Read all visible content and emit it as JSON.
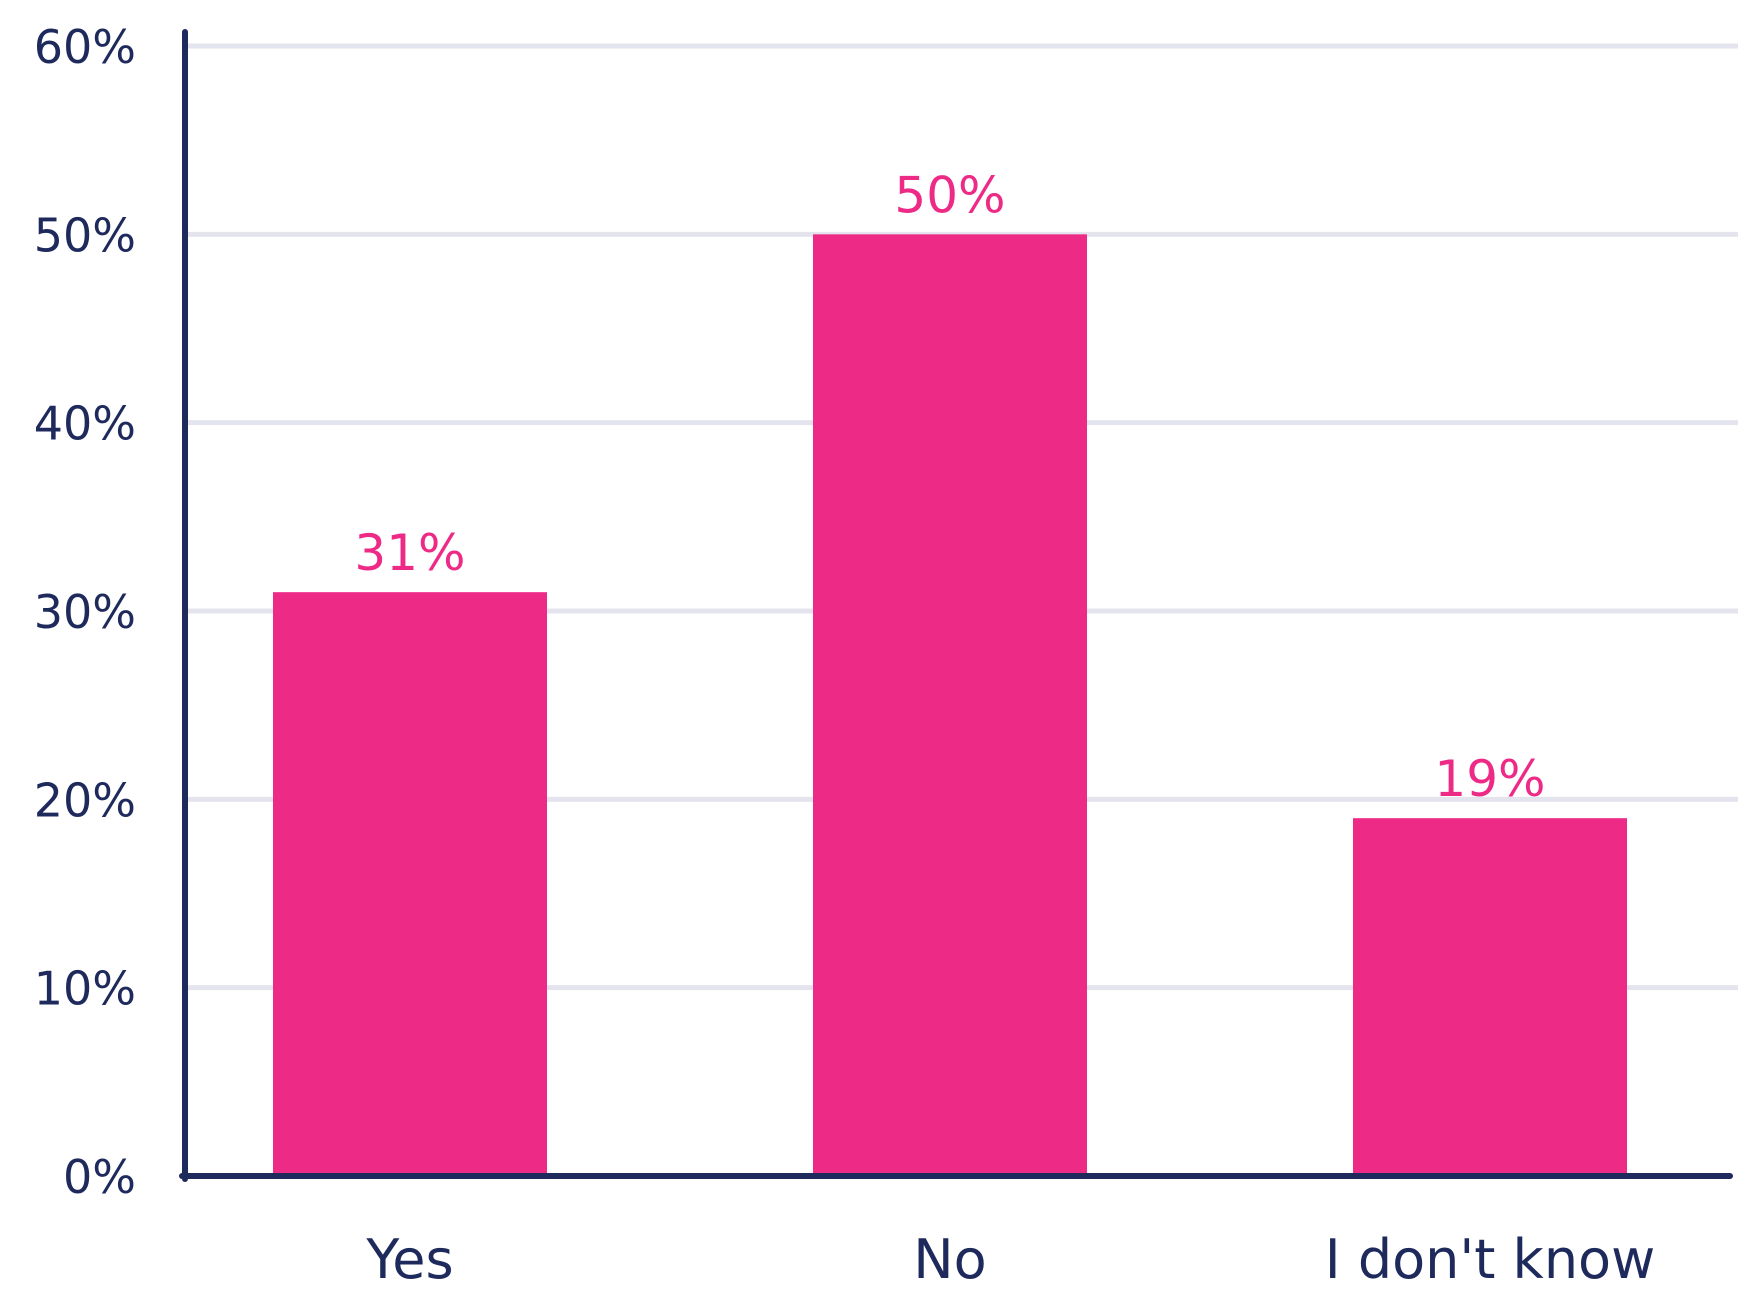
{
  "chart_data": {
    "type": "bar",
    "categories": [
      "Yes",
      "No",
      "I don't know"
    ],
    "values": [
      31,
      50,
      19
    ],
    "data_labels": [
      "31%",
      "50%",
      "19%"
    ],
    "title": "",
    "xlabel": "",
    "ylabel": "",
    "ylim": [
      0,
      60
    ],
    "yticks": [
      0,
      10,
      20,
      30,
      40,
      50,
      60
    ],
    "ytick_labels": [
      "0%",
      "10%",
      "20%",
      "30%",
      "40%",
      "50%",
      "60%"
    ],
    "grid": true,
    "legend": "none",
    "colors": {
      "bar": "#ee2a87",
      "data_label": "#ee2a87",
      "axis": "#1f2a5c",
      "text": "#1f2a5c",
      "grid": "#e4e4ee"
    }
  }
}
